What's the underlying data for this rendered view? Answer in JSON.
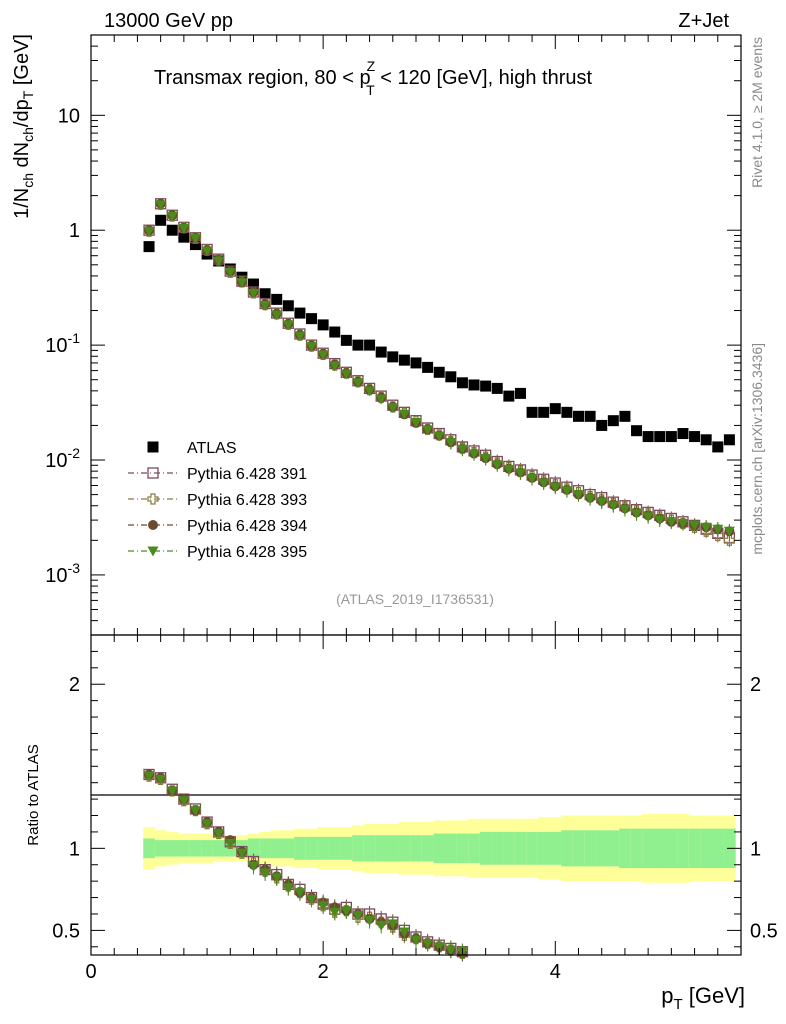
{
  "header": {
    "energy": "13000 GeV pp",
    "process": "Z+Jet",
    "plot_id": "(ATLAS_2019_I1736531)",
    "side_top": "Rivet 4.1.0, ≥ 2M events",
    "side_bottom": "mcplots.cern.ch [arXiv:1306.3436]"
  },
  "chart_data": [
    {
      "type": "scatter",
      "panel": "main",
      "title": "Transmax region, 80 < p_T^Z < 120 [GeV], high thrust",
      "title_parts": {
        "pre": "Transmax region, 80 < p",
        "sup": "Z",
        "sub": "T",
        "post": " < 120 [GeV], high thrust"
      },
      "ylabel": "1/N_ch dN_ch/dp_T [GeV]",
      "yscale": "log",
      "xlim": [
        0,
        5.6
      ],
      "ylim": [
        0.0003,
        50
      ],
      "xticks": [
        "0",
        "2",
        "4"
      ],
      "yticks": [
        "10",
        "1",
        "10^-1",
        "10^-2",
        "10^-3"
      ],
      "x": [
        0.5,
        0.6,
        0.7,
        0.8,
        0.9,
        1.0,
        1.1,
        1.2,
        1.3,
        1.4,
        1.5,
        1.6,
        1.7,
        1.8,
        1.9,
        2.0,
        2.1,
        2.2,
        2.3,
        2.4,
        2.5,
        2.6,
        2.7,
        2.8,
        2.9,
        3.0,
        3.1,
        3.2,
        3.3,
        3.4,
        3.5,
        3.6,
        3.7,
        3.8,
        3.9,
        4.0,
        4.1,
        4.2,
        4.3,
        4.4,
        4.5,
        4.6,
        4.7,
        4.8,
        4.9,
        5.0,
        5.1,
        5.2,
        5.3,
        5.4,
        5.5
      ],
      "series": [
        {
          "name": "ATLAS",
          "marker": "square-filled",
          "color": "#000000",
          "values": [
            0.72,
            1.22,
            1.0,
            0.87,
            0.75,
            0.62,
            0.54,
            0.46,
            0.39,
            0.34,
            0.28,
            0.25,
            0.22,
            0.19,
            0.17,
            0.15,
            0.13,
            0.11,
            0.1,
            0.1,
            0.087,
            0.079,
            0.074,
            0.07,
            0.064,
            0.058,
            0.053,
            0.047,
            0.045,
            0.044,
            0.042,
            0.036,
            0.038,
            0.026,
            0.026,
            0.028,
            0.026,
            0.024,
            0.024,
            0.02,
            0.022,
            0.024,
            0.018,
            0.016,
            0.016,
            0.016,
            0.017,
            0.016,
            0.015,
            0.013,
            0.015
          ]
        },
        {
          "name": "Pythia 6.428 391",
          "marker": "square-open",
          "color": "#7b4a5c",
          "values": [
            1.0,
            1.7,
            1.35,
            1.06,
            0.86,
            0.68,
            0.56,
            0.44,
            0.36,
            0.29,
            0.23,
            0.19,
            0.155,
            0.125,
            0.1,
            0.085,
            0.069,
            0.058,
            0.049,
            0.042,
            0.036,
            0.03,
            0.026,
            0.022,
            0.019,
            0.017,
            0.015,
            0.013,
            0.012,
            0.011,
            0.0097,
            0.0088,
            0.0082,
            0.0074,
            0.0068,
            0.0063,
            0.0058,
            0.0054,
            0.005,
            0.0047,
            0.0043,
            0.004,
            0.0037,
            0.0035,
            0.0033,
            0.0031,
            0.0029,
            0.0027,
            0.0025,
            0.0023,
            0.0021
          ]
        },
        {
          "name": "Pythia 6.428 393",
          "marker": "cross-open",
          "color": "#8c7a3f",
          "values": [
            0.98,
            1.68,
            1.33,
            1.05,
            0.85,
            0.67,
            0.55,
            0.43,
            0.355,
            0.285,
            0.225,
            0.187,
            0.152,
            0.122,
            0.098,
            0.083,
            0.067,
            0.057,
            0.048,
            0.041,
            0.035,
            0.029,
            0.0255,
            0.0215,
            0.0185,
            0.0165,
            0.0145,
            0.0127,
            0.0116,
            0.0106,
            0.0094,
            0.0086,
            0.008,
            0.0072,
            0.0066,
            0.0061,
            0.0056,
            0.0052,
            0.0048,
            0.0045,
            0.0042,
            0.0039,
            0.0036,
            0.0034,
            0.0032,
            0.003,
            0.0028,
            0.0026,
            0.0024,
            0.0022,
            0.002
          ]
        },
        {
          "name": "Pythia 6.428 394",
          "marker": "circle-filled",
          "color": "#6b4a2f",
          "values": [
            1.0,
            1.7,
            1.35,
            1.05,
            0.86,
            0.67,
            0.55,
            0.44,
            0.355,
            0.29,
            0.228,
            0.188,
            0.153,
            0.123,
            0.099,
            0.084,
            0.068,
            0.057,
            0.048,
            0.041,
            0.035,
            0.029,
            0.025,
            0.021,
            0.0185,
            0.0163,
            0.0143,
            0.0125,
            0.0114,
            0.0104,
            0.0092,
            0.0084,
            0.0078,
            0.007,
            0.0064,
            0.0059,
            0.0055,
            0.005,
            0.0047,
            0.0044,
            0.0041,
            0.0038,
            0.0035,
            0.0033,
            0.0031,
            0.0029,
            0.0028,
            0.0027,
            0.0026,
            0.0025,
            0.0024
          ]
        },
        {
          "name": "Pythia 6.428 395",
          "marker": "triangle-down-filled",
          "color": "#4d8a1d",
          "values": [
            0.98,
            1.66,
            1.32,
            1.04,
            0.85,
            0.66,
            0.54,
            0.43,
            0.35,
            0.283,
            0.222,
            0.183,
            0.15,
            0.12,
            0.097,
            0.082,
            0.066,
            0.056,
            0.047,
            0.04,
            0.034,
            0.0285,
            0.025,
            0.0212,
            0.0183,
            0.0162,
            0.0142,
            0.0124,
            0.0113,
            0.0103,
            0.0091,
            0.0083,
            0.0077,
            0.0069,
            0.0063,
            0.0058,
            0.0054,
            0.005,
            0.0046,
            0.0043,
            0.004,
            0.0037,
            0.0034,
            0.0032,
            0.003,
            0.0029,
            0.0028,
            0.0027,
            0.0026,
            0.0025,
            0.0024
          ]
        }
      ]
    },
    {
      "type": "scatter",
      "panel": "ratio",
      "ylabel": "Ratio to ATLAS",
      "xlabel": "p_T [GeV]",
      "xlim": [
        0,
        5.6
      ],
      "ylim": [
        0.35,
        2.3
      ],
      "yticks": [
        "0.5",
        "1",
        "2"
      ],
      "xticks": [
        "0",
        "2",
        "4"
      ],
      "band_inner": [
        0.06,
        0.05,
        0.05,
        0.05,
        0.05,
        0.05,
        0.05,
        0.05,
        0.05,
        0.06,
        0.06,
        0.06,
        0.06,
        0.07,
        0.07,
        0.07,
        0.07,
        0.07,
        0.08,
        0.08,
        0.08,
        0.08,
        0.08,
        0.08,
        0.08,
        0.09,
        0.09,
        0.09,
        0.09,
        0.1,
        0.1,
        0.1,
        0.1,
        0.1,
        0.1,
        0.1,
        0.11,
        0.11,
        0.11,
        0.11,
        0.11,
        0.12,
        0.12,
        0.12,
        0.12,
        0.12,
        0.12,
        0.12,
        0.12,
        0.12,
        0.12
      ],
      "band_outer": [
        0.13,
        0.11,
        0.1,
        0.09,
        0.09,
        0.09,
        0.08,
        0.08,
        0.08,
        0.09,
        0.1,
        0.11,
        0.11,
        0.12,
        0.12,
        0.13,
        0.13,
        0.13,
        0.14,
        0.15,
        0.15,
        0.15,
        0.16,
        0.16,
        0.16,
        0.17,
        0.17,
        0.17,
        0.18,
        0.18,
        0.18,
        0.18,
        0.18,
        0.18,
        0.19,
        0.19,
        0.2,
        0.2,
        0.2,
        0.2,
        0.2,
        0.2,
        0.2,
        0.21,
        0.21,
        0.21,
        0.21,
        0.2,
        0.2,
        0.2,
        0.2
      ],
      "series": [
        {
          "name": "Pythia 6.428 391",
          "values": [
            1.45,
            1.43,
            1.36,
            1.3,
            1.24,
            1.16,
            1.1,
            1.04,
            0.98,
            0.92,
            0.87,
            0.84,
            0.78,
            0.75,
            0.7,
            0.66,
            0.63,
            0.64,
            0.6,
            0.6,
            0.57,
            0.55,
            0.5,
            0.46,
            0.43,
            0.41,
            0.39,
            0.37
          ]
        },
        {
          "name": "Pythia 6.428 393",
          "values": [
            1.44,
            1.42,
            1.35,
            1.29,
            1.23,
            1.15,
            1.09,
            1.03,
            0.97,
            0.91,
            0.86,
            0.82,
            0.77,
            0.73,
            0.69,
            0.65,
            0.61,
            0.62,
            0.58,
            0.58,
            0.55,
            0.52,
            0.47,
            0.45,
            0.42,
            0.4,
            0.38,
            0.36
          ]
        },
        {
          "name": "Pythia 6.428 394",
          "values": [
            1.45,
            1.43,
            1.35,
            1.3,
            1.23,
            1.16,
            1.1,
            1.05,
            0.98,
            0.9,
            0.87,
            0.83,
            0.78,
            0.73,
            0.7,
            0.67,
            0.64,
            0.62,
            0.6,
            0.57,
            0.55,
            0.53,
            0.48,
            0.45,
            0.42,
            0.4,
            0.38,
            0.36
          ]
        },
        {
          "name": "Pythia 6.428 395",
          "values": [
            1.44,
            1.42,
            1.35,
            1.29,
            1.23,
            1.15,
            1.09,
            1.03,
            0.97,
            0.89,
            0.85,
            0.82,
            0.76,
            0.73,
            0.69,
            0.65,
            0.61,
            0.62,
            0.59,
            0.56,
            0.53,
            0.54,
            0.49,
            0.44,
            0.42,
            0.4,
            0.38,
            0.37
          ]
        }
      ]
    }
  ],
  "colors": {
    "band_inner": "#90f090",
    "band_outer": "#ffff99",
    "frame": "#000000",
    "side_text": "#888888",
    "plot_id": "#999999"
  }
}
